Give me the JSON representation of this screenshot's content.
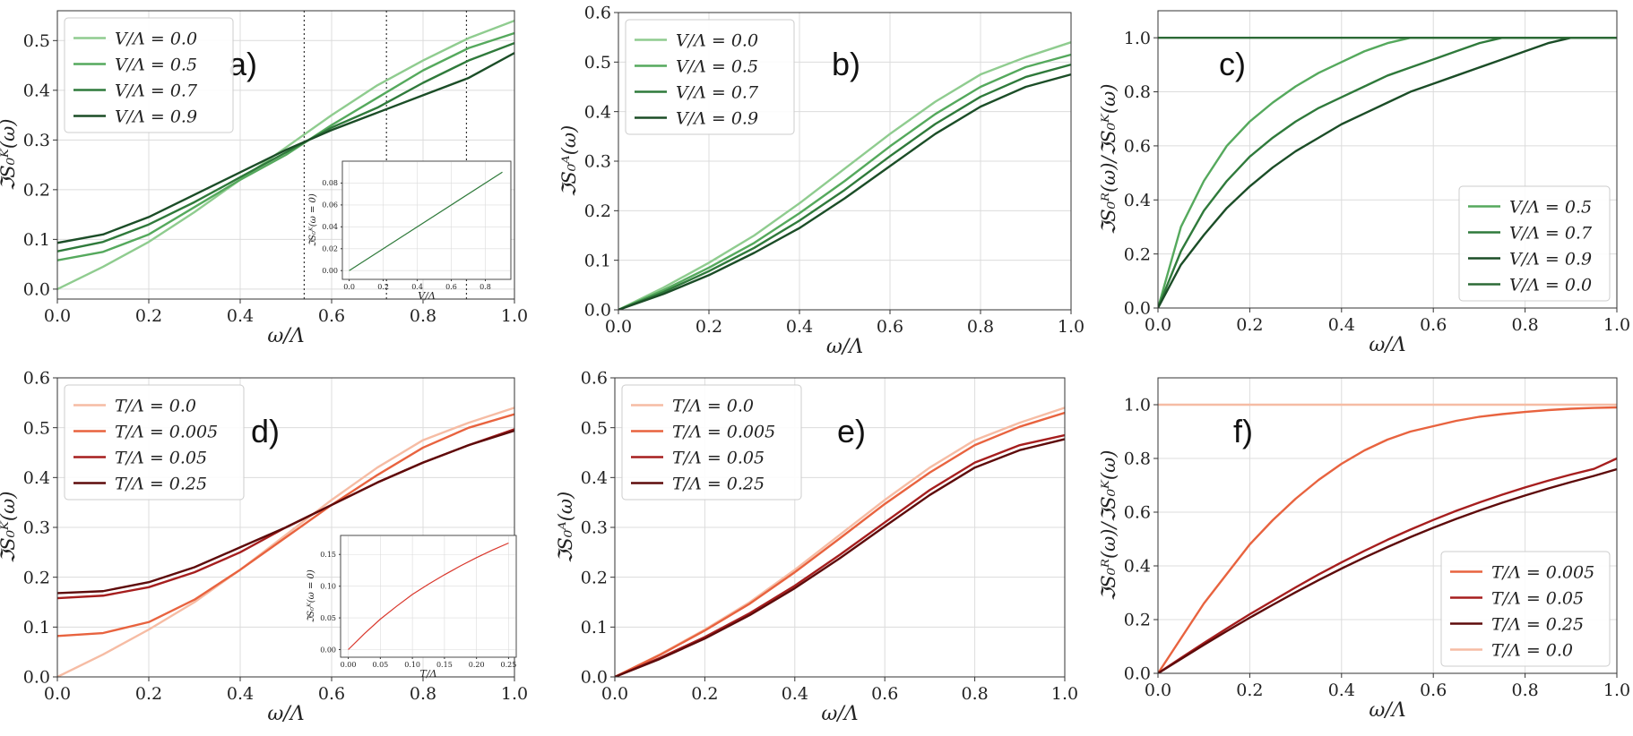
{
  "chart_data": [
    {
      "type": "line",
      "panel_label": "a)",
      "xlabel": "ω/Λ",
      "ylabel": "ℑS₀ᴷ(ω)",
      "xlim": [
        0,
        1
      ],
      "ylim": [
        -0.02,
        0.56
      ],
      "xticks": [
        0,
        0.2,
        0.4,
        0.6,
        0.8,
        1.0
      ],
      "xtick_labels": [
        "0.0",
        "0.2",
        "0.4",
        "0.6",
        "0.8",
        "1.0"
      ],
      "yticks": [
        0,
        0.1,
        0.2,
        0.3,
        0.4,
        0.5
      ],
      "ytick_labels": [
        "0.0",
        "0.1",
        "0.2",
        "0.3",
        "0.4",
        "0.5"
      ],
      "grid": true,
      "legend_position": "top-left",
      "vlines": [
        0.54,
        0.72,
        0.895
      ],
      "x": [
        0,
        0.1,
        0.2,
        0.3,
        0.4,
        0.5,
        0.6,
        0.7,
        0.8,
        0.9,
        1.0
      ],
      "series": [
        {
          "name": "V/Λ = 0.0",
          "color": "#8fcc8f",
          "values": [
            0.0,
            0.045,
            0.095,
            0.155,
            0.22,
            0.285,
            0.35,
            0.41,
            0.46,
            0.505,
            0.54
          ]
        },
        {
          "name": "V/Λ = 0.5",
          "color": "#55a95d",
          "values": [
            0.058,
            0.075,
            0.11,
            0.165,
            0.22,
            0.27,
            0.33,
            0.385,
            0.44,
            0.485,
            0.515
          ]
        },
        {
          "name": "V/Λ = 0.7",
          "color": "#2f7a3b",
          "values": [
            0.076,
            0.095,
            0.13,
            0.175,
            0.225,
            0.275,
            0.325,
            0.365,
            0.415,
            0.46,
            0.495
          ]
        },
        {
          "name": "V/Λ = 0.9",
          "color": "#1b4d27",
          "values": [
            0.093,
            0.11,
            0.145,
            0.19,
            0.235,
            0.28,
            0.32,
            0.355,
            0.39,
            0.425,
            0.475
          ]
        }
      ],
      "inset": {
        "xlabel": "V/Λ",
        "ylabel": "ℑS₀ᴷ(ω = 0)",
        "xlim": [
          -0.04,
          0.95
        ],
        "ylim": [
          -0.008,
          0.1
        ],
        "xticks": [
          0,
          0.2,
          0.4,
          0.6,
          0.8
        ],
        "xtick_labels": [
          "0.0",
          "0.2",
          "0.4",
          "0.6",
          "0.8"
        ],
        "yticks": [
          0,
          0.02,
          0.04,
          0.06,
          0.08
        ],
        "ytick_labels": [
          "0.00",
          "0.02",
          "0.04",
          "0.06",
          "0.08"
        ],
        "x": [
          0,
          0.9
        ],
        "values": [
          0.0,
          0.09
        ],
        "color": "#2f7a3b"
      }
    },
    {
      "type": "line",
      "panel_label": "b)",
      "xlabel": "ω/Λ",
      "ylabel": "ℑS₀ᴬ(ω)",
      "xlim": [
        0,
        1
      ],
      "ylim": [
        0,
        0.6
      ],
      "xticks": [
        0,
        0.2,
        0.4,
        0.6,
        0.8,
        1.0
      ],
      "xtick_labels": [
        "0.0",
        "0.2",
        "0.4",
        "0.6",
        "0.8",
        "1.0"
      ],
      "yticks": [
        0,
        0.1,
        0.2,
        0.3,
        0.4,
        0.5,
        0.6
      ],
      "ytick_labels": [
        "0.0",
        "0.1",
        "0.2",
        "0.3",
        "0.4",
        "0.5",
        "0.6"
      ],
      "grid": true,
      "legend_position": "top-left",
      "x": [
        0,
        0.1,
        0.2,
        0.3,
        0.4,
        0.5,
        0.6,
        0.7,
        0.8,
        0.9,
        1.0
      ],
      "series": [
        {
          "name": "V/Λ = 0.0",
          "color": "#8fcc8f",
          "values": [
            0.0,
            0.045,
            0.095,
            0.15,
            0.215,
            0.285,
            0.355,
            0.42,
            0.475,
            0.51,
            0.54
          ]
        },
        {
          "name": "V/Λ = 0.5",
          "color": "#55a95d",
          "values": [
            0.0,
            0.04,
            0.085,
            0.135,
            0.195,
            0.26,
            0.33,
            0.395,
            0.45,
            0.49,
            0.515
          ]
        },
        {
          "name": "V/Λ = 0.7",
          "color": "#2f7a3b",
          "values": [
            0.0,
            0.036,
            0.078,
            0.125,
            0.18,
            0.242,
            0.31,
            0.375,
            0.43,
            0.47,
            0.495
          ]
        },
        {
          "name": "V/Λ = 0.9",
          "color": "#1b4d27",
          "values": [
            0.0,
            0.032,
            0.07,
            0.115,
            0.165,
            0.225,
            0.29,
            0.355,
            0.41,
            0.45,
            0.475
          ]
        }
      ]
    },
    {
      "type": "line",
      "panel_label": "c)",
      "xlabel": "ω/Λ",
      "ylabel": "ℑS₀ᴿ(ω)/ℑS₀ᴷ(ω)",
      "xlim": [
        0,
        1
      ],
      "ylim": [
        0,
        1.1
      ],
      "xticks": [
        0,
        0.2,
        0.4,
        0.6,
        0.8,
        1.0
      ],
      "xtick_labels": [
        "0.0",
        "0.2",
        "0.4",
        "0.6",
        "0.8",
        "1.0"
      ],
      "yticks": [
        0,
        0.2,
        0.4,
        0.6,
        0.8,
        1.0
      ],
      "ytick_labels": [
        "0.0",
        "0.2",
        "0.4",
        "0.6",
        "0.8",
        "1.0"
      ],
      "grid": true,
      "legend_position": "bottom-right",
      "x": [
        0,
        0.05,
        0.1,
        0.15,
        0.2,
        0.25,
        0.3,
        0.35,
        0.4,
        0.45,
        0.5,
        0.55,
        0.6,
        0.65,
        0.7,
        0.75,
        0.8,
        0.85,
        0.9,
        0.95,
        1.0
      ],
      "series": [
        {
          "name": "V/Λ = 0.5",
          "color": "#55a95d",
          "values": [
            0.0,
            0.3,
            0.47,
            0.6,
            0.69,
            0.76,
            0.82,
            0.87,
            0.91,
            0.95,
            0.98,
            1.0,
            1.0,
            1.0,
            1.0,
            1.0,
            1.0,
            1.0,
            1.0,
            1.0,
            1.0
          ]
        },
        {
          "name": "V/Λ = 0.7",
          "color": "#2f7a3b",
          "values": [
            0.0,
            0.21,
            0.36,
            0.47,
            0.56,
            0.63,
            0.69,
            0.74,
            0.78,
            0.82,
            0.86,
            0.89,
            0.92,
            0.95,
            0.98,
            1.0,
            1.0,
            1.0,
            1.0,
            1.0,
            1.0
          ]
        },
        {
          "name": "V/Λ = 0.9",
          "color": "#1b4d27",
          "values": [
            0.0,
            0.16,
            0.27,
            0.37,
            0.45,
            0.52,
            0.58,
            0.63,
            0.68,
            0.72,
            0.76,
            0.8,
            0.83,
            0.86,
            0.89,
            0.92,
            0.95,
            0.98,
            1.0,
            1.0,
            1.0
          ]
        },
        {
          "name": "V/Λ = 0.0",
          "color": "#2c6a36",
          "values": [
            1.0,
            1.0,
            1.0,
            1.0,
            1.0,
            1.0,
            1.0,
            1.0,
            1.0,
            1.0,
            1.0,
            1.0,
            1.0,
            1.0,
            1.0,
            1.0,
            1.0,
            1.0,
            1.0,
            1.0,
            1.0
          ]
        }
      ]
    },
    {
      "type": "line",
      "panel_label": "d)",
      "xlabel": "ω/Λ",
      "ylabel": "ℑS₀ᴷ(ω)",
      "xlim": [
        0,
        1
      ],
      "ylim": [
        0,
        0.6
      ],
      "xticks": [
        0,
        0.2,
        0.4,
        0.6,
        0.8,
        1.0
      ],
      "xtick_labels": [
        "0.0",
        "0.2",
        "0.4",
        "0.6",
        "0.8",
        "1.0"
      ],
      "yticks": [
        0,
        0.1,
        0.2,
        0.3,
        0.4,
        0.5,
        0.6
      ],
      "ytick_labels": [
        "0.0",
        "0.1",
        "0.2",
        "0.3",
        "0.4",
        "0.5",
        "0.6"
      ],
      "grid": true,
      "legend_position": "top-left",
      "x": [
        0,
        0.1,
        0.2,
        0.3,
        0.4,
        0.5,
        0.6,
        0.7,
        0.8,
        0.9,
        1.0
      ],
      "series": [
        {
          "name": "T/Λ = 0.0",
          "color": "#f6bca4",
          "values": [
            0.0,
            0.045,
            0.095,
            0.15,
            0.215,
            0.285,
            0.355,
            0.42,
            0.475,
            0.51,
            0.54
          ]
        },
        {
          "name": "T/Λ = 0.005",
          "color": "#e8633f",
          "values": [
            0.082,
            0.088,
            0.11,
            0.155,
            0.215,
            0.28,
            0.345,
            0.405,
            0.46,
            0.5,
            0.527
          ]
        },
        {
          "name": "T/Λ = 0.05",
          "color": "#a61e1e",
          "values": [
            0.158,
            0.163,
            0.18,
            0.21,
            0.25,
            0.3,
            0.345,
            0.39,
            0.43,
            0.465,
            0.497
          ]
        },
        {
          "name": "T/Λ = 0.25",
          "color": "#5e0b0b",
          "values": [
            0.168,
            0.172,
            0.19,
            0.22,
            0.26,
            0.3,
            0.345,
            0.39,
            0.43,
            0.465,
            0.494
          ]
        }
      ],
      "inset": {
        "xlabel": "T/Λ",
        "ylabel": "ℑS₀ᴷ(ω = 0)",
        "xlim": [
          -0.012,
          0.262
        ],
        "ylim": [
          -0.012,
          0.18
        ],
        "xticks": [
          0,
          0.05,
          0.1,
          0.15,
          0.2,
          0.25
        ],
        "xtick_labels": [
          "0.00",
          "0.05",
          "0.10",
          "0.15",
          "0.20",
          "0.25"
        ],
        "yticks": [
          0,
          0.05,
          0.1,
          0.15
        ],
        "ytick_labels": [
          "0.00",
          "0.05",
          "0.10",
          "0.15"
        ],
        "x": [
          0,
          0.025,
          0.05,
          0.075,
          0.1,
          0.125,
          0.15,
          0.175,
          0.2,
          0.225,
          0.25
        ],
        "values": [
          0.0,
          0.025,
          0.048,
          0.068,
          0.087,
          0.103,
          0.118,
          0.132,
          0.145,
          0.157,
          0.168
        ],
        "color": "#d9372c"
      }
    },
    {
      "type": "line",
      "panel_label": "e)",
      "xlabel": "ω/Λ",
      "ylabel": "ℑS₀ᴬ(ω)",
      "xlim": [
        0,
        1
      ],
      "ylim": [
        0,
        0.6
      ],
      "xticks": [
        0,
        0.2,
        0.4,
        0.6,
        0.8,
        1.0
      ],
      "xtick_labels": [
        "0.0",
        "0.2",
        "0.4",
        "0.6",
        "0.8",
        "1.0"
      ],
      "yticks": [
        0,
        0.1,
        0.2,
        0.3,
        0.4,
        0.5,
        0.6
      ],
      "ytick_labels": [
        "0.0",
        "0.1",
        "0.2",
        "0.3",
        "0.4",
        "0.5",
        "0.6"
      ],
      "grid": true,
      "legend_position": "top-left",
      "x": [
        0,
        0.1,
        0.2,
        0.3,
        0.4,
        0.5,
        0.6,
        0.7,
        0.8,
        0.9,
        1.0
      ],
      "series": [
        {
          "name": "T/Λ = 0.0",
          "color": "#f6bca4",
          "values": [
            0.0,
            0.045,
            0.095,
            0.15,
            0.215,
            0.285,
            0.355,
            0.42,
            0.475,
            0.51,
            0.54
          ]
        },
        {
          "name": "T/Λ = 0.005",
          "color": "#e8633f",
          "values": [
            0.0,
            0.044,
            0.093,
            0.147,
            0.21,
            0.278,
            0.347,
            0.41,
            0.465,
            0.502,
            0.53
          ]
        },
        {
          "name": "T/Λ = 0.05",
          "color": "#a61e1e",
          "values": [
            0.0,
            0.038,
            0.08,
            0.128,
            0.183,
            0.245,
            0.31,
            0.375,
            0.43,
            0.465,
            0.485
          ]
        },
        {
          "name": "T/Λ = 0.25",
          "color": "#5e0b0b",
          "values": [
            0.0,
            0.036,
            0.077,
            0.124,
            0.178,
            0.238,
            0.302,
            0.365,
            0.42,
            0.455,
            0.477
          ]
        }
      ]
    },
    {
      "type": "line",
      "panel_label": "f)",
      "xlabel": "ω/Λ",
      "ylabel": "ℑS₀ᴿ(ω)/ℑS₀ᴷ(ω)",
      "xlim": [
        0,
        1
      ],
      "ylim": [
        0,
        1.1
      ],
      "xticks": [
        0,
        0.2,
        0.4,
        0.6,
        0.8,
        1.0
      ],
      "xtick_labels": [
        "0.0",
        "0.2",
        "0.4",
        "0.6",
        "0.8",
        "1.0"
      ],
      "yticks": [
        0,
        0.2,
        0.4,
        0.6,
        0.8,
        1.0
      ],
      "ytick_labels": [
        "0.0",
        "0.2",
        "0.4",
        "0.6",
        "0.8",
        "1.0"
      ],
      "grid": true,
      "legend_position": "bottom-right",
      "x": [
        0,
        0.05,
        0.1,
        0.15,
        0.2,
        0.25,
        0.3,
        0.35,
        0.4,
        0.45,
        0.5,
        0.55,
        0.6,
        0.65,
        0.7,
        0.75,
        0.8,
        0.85,
        0.9,
        0.95,
        1.0
      ],
      "series": [
        {
          "name": "T/Λ = 0.005",
          "color": "#e8633f",
          "values": [
            0.0,
            0.13,
            0.26,
            0.37,
            0.48,
            0.57,
            0.65,
            0.72,
            0.78,
            0.83,
            0.87,
            0.9,
            0.92,
            0.94,
            0.955,
            0.965,
            0.973,
            0.98,
            0.985,
            0.988,
            0.99
          ]
        },
        {
          "name": "T/Λ = 0.05",
          "color": "#a61e1e",
          "values": [
            0.0,
            0.057,
            0.113,
            0.167,
            0.22,
            0.27,
            0.32,
            0.368,
            0.413,
            0.456,
            0.497,
            0.535,
            0.571,
            0.605,
            0.636,
            0.665,
            0.692,
            0.717,
            0.74,
            0.761,
            0.8
          ]
        },
        {
          "name": "T/Λ = 0.25",
          "color": "#5e0b0b",
          "values": [
            0.0,
            0.053,
            0.106,
            0.157,
            0.207,
            0.255,
            0.302,
            0.347,
            0.39,
            0.431,
            0.47,
            0.507,
            0.542,
            0.575,
            0.606,
            0.635,
            0.662,
            0.688,
            0.712,
            0.735,
            0.76
          ]
        },
        {
          "name": "T/Λ = 0.0",
          "color": "#f6bca4",
          "values": [
            1.0,
            1.0,
            1.0,
            1.0,
            1.0,
            1.0,
            1.0,
            1.0,
            1.0,
            1.0,
            1.0,
            1.0,
            1.0,
            1.0,
            1.0,
            1.0,
            1.0,
            1.0,
            1.0,
            1.0,
            1.0
          ]
        }
      ]
    }
  ]
}
